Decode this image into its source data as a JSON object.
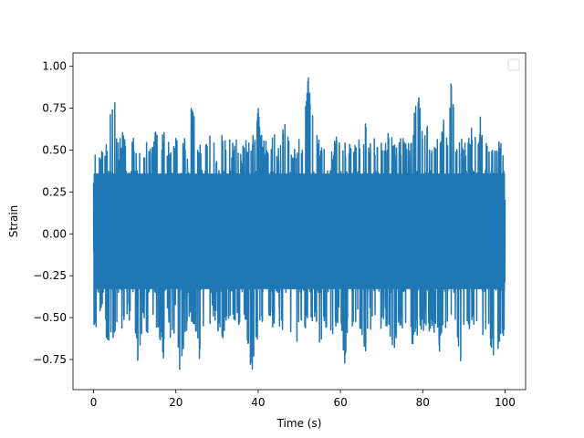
{
  "chart_data": {
    "type": "line",
    "title": "",
    "xlabel": "Time (s)",
    "ylabel": "Strain",
    "xlim": [
      -5,
      105
    ],
    "ylim": [
      -0.93,
      1.08
    ],
    "xticks": [
      0,
      20,
      40,
      60,
      80,
      100
    ],
    "xtick_labels": [
      "0",
      "20",
      "40",
      "60",
      "80",
      "100"
    ],
    "yticks": [
      -0.75,
      -0.5,
      -0.25,
      0.0,
      0.25,
      0.5,
      0.75,
      1.0
    ],
    "ytick_labels": [
      "−0.75",
      "−0.50",
      "−0.25",
      "0.00",
      "0.25",
      "0.50",
      "0.75",
      "1.00"
    ],
    "grid": false,
    "legend": "top-right",
    "legend_entries": [],
    "series": [
      {
        "color": "#1f77b4",
        "x_start": 0,
        "x_end": 100,
        "envelope": [
          [
            0,
            -0.66,
            0.53
          ],
          [
            1,
            -0.55,
            0.52
          ],
          [
            2,
            -0.5,
            0.52
          ],
          [
            3,
            -0.62,
            0.53
          ],
          [
            4,
            -0.72,
            0.75
          ],
          [
            5,
            -0.6,
            0.87
          ],
          [
            6,
            -0.52,
            0.55
          ],
          [
            7,
            -0.58,
            0.63
          ],
          [
            8,
            -0.55,
            0.52
          ],
          [
            9,
            -0.5,
            0.6
          ],
          [
            10,
            -0.62,
            0.58
          ],
          [
            11,
            -0.83,
            0.52
          ],
          [
            12,
            -0.55,
            0.5
          ],
          [
            13,
            -0.6,
            0.57
          ],
          [
            14,
            -0.55,
            0.52
          ],
          [
            15,
            -0.58,
            0.62
          ],
          [
            16,
            -0.62,
            0.55
          ],
          [
            17,
            -0.75,
            0.62
          ],
          [
            18,
            -0.55,
            0.55
          ],
          [
            19,
            -0.72,
            0.55
          ],
          [
            20,
            -0.5,
            0.58
          ],
          [
            21,
            -0.85,
            0.55
          ],
          [
            22,
            -0.7,
            0.58
          ],
          [
            23,
            -0.55,
            0.55
          ],
          [
            24,
            -0.52,
            0.83
          ],
          [
            25,
            -0.6,
            0.57
          ],
          [
            26,
            -0.82,
            0.55
          ],
          [
            27,
            -0.55,
            0.55
          ],
          [
            28,
            -0.6,
            0.6
          ],
          [
            29,
            -0.5,
            0.55
          ],
          [
            30,
            -0.55,
            0.52
          ],
          [
            31,
            -0.72,
            0.7
          ],
          [
            32,
            -0.55,
            0.55
          ],
          [
            33,
            -0.6,
            0.6
          ],
          [
            34,
            -0.55,
            0.55
          ],
          [
            35,
            -0.55,
            0.58
          ],
          [
            36,
            -0.62,
            0.52
          ],
          [
            37,
            -0.55,
            0.58
          ],
          [
            38,
            -0.85,
            0.55
          ],
          [
            39,
            -0.8,
            0.62
          ],
          [
            40,
            -0.6,
            0.8
          ],
          [
            41,
            -0.55,
            0.55
          ],
          [
            42,
            -0.55,
            0.58
          ],
          [
            43,
            -0.55,
            0.55
          ],
          [
            44,
            -0.58,
            0.6
          ],
          [
            45,
            -0.55,
            0.52
          ],
          [
            46,
            -0.62,
            0.68
          ],
          [
            47,
            -0.52,
            0.72
          ],
          [
            48,
            -0.6,
            0.55
          ],
          [
            49,
            -0.87,
            0.55
          ],
          [
            50,
            -0.55,
            0.58
          ],
          [
            51,
            -0.68,
            0.55
          ],
          [
            52,
            -0.58,
            1.0
          ],
          [
            53,
            -0.62,
            0.8
          ],
          [
            54,
            -0.55,
            0.62
          ],
          [
            55,
            -0.72,
            0.55
          ],
          [
            56,
            -0.6,
            0.58
          ],
          [
            57,
            -0.55,
            0.72
          ],
          [
            58,
            -0.62,
            0.55
          ],
          [
            59,
            -0.55,
            0.58
          ],
          [
            60,
            -0.55,
            0.55
          ],
          [
            61,
            -0.8,
            0.58
          ],
          [
            62,
            -0.55,
            0.55
          ],
          [
            63,
            -0.58,
            0.55
          ],
          [
            64,
            -0.52,
            0.58
          ],
          [
            65,
            -0.6,
            0.55
          ],
          [
            66,
            -0.75,
            0.7
          ],
          [
            67,
            -0.55,
            0.55
          ],
          [
            68,
            -0.62,
            0.58
          ],
          [
            69,
            -0.55,
            0.55
          ],
          [
            70,
            -0.6,
            0.58
          ],
          [
            71,
            -0.55,
            0.55
          ],
          [
            72,
            -0.62,
            0.72
          ],
          [
            73,
            -0.75,
            0.58
          ],
          [
            74,
            -0.55,
            0.55
          ],
          [
            75,
            -0.6,
            0.58
          ],
          [
            76,
            -0.55,
            0.55
          ],
          [
            77,
            -0.62,
            0.58
          ],
          [
            78,
            -0.72,
            0.75
          ],
          [
            79,
            -0.55,
            0.85
          ],
          [
            80,
            -0.6,
            0.6
          ],
          [
            81,
            -0.55,
            0.72
          ],
          [
            82,
            -0.62,
            0.55
          ],
          [
            83,
            -0.58,
            0.58
          ],
          [
            84,
            -0.72,
            0.55
          ],
          [
            85,
            -0.55,
            0.72
          ],
          [
            86,
            -0.62,
            0.55
          ],
          [
            87,
            -0.55,
            0.95
          ],
          [
            88,
            -0.6,
            0.55
          ],
          [
            89,
            -0.82,
            0.58
          ],
          [
            90,
            -0.55,
            0.55
          ],
          [
            91,
            -0.62,
            0.58
          ],
          [
            92,
            -0.55,
            0.68
          ],
          [
            93,
            -0.6,
            0.55
          ],
          [
            94,
            -0.75,
            0.7
          ],
          [
            95,
            -0.55,
            0.58
          ],
          [
            96,
            -0.62,
            0.55
          ],
          [
            97,
            -0.72,
            0.58
          ],
          [
            98,
            -0.8,
            0.55
          ],
          [
            99,
            -0.6,
            0.58
          ],
          [
            100,
            -0.66,
            0.58
          ]
        ],
        "core_range": [
          -0.35,
          0.38
        ]
      }
    ]
  }
}
